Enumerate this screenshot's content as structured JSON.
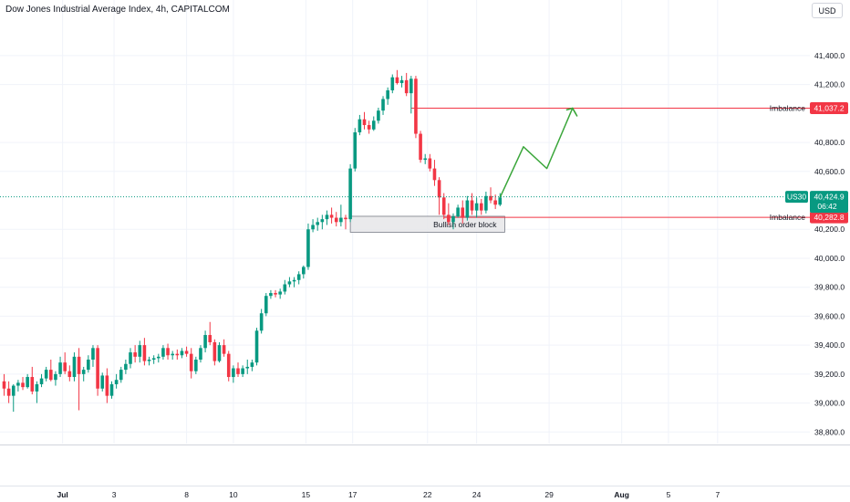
{
  "header": {
    "title": "Dow Jones Industrial Average Index, 4h, CAPITALCOM",
    "currency": "USD"
  },
  "colors": {
    "up": "#089981",
    "down": "#f23645",
    "projection": "#3aa63a",
    "level_line": "#f23645",
    "grid": "#f0f3fa",
    "axis_text": "#131722",
    "dotted_price": "#089981",
    "order_block_fill": "#e6e6e9",
    "order_block_border": "#787b86"
  },
  "chart_data": {
    "type": "candlestick",
    "symbol": "US30",
    "timeframe": "4h",
    "ylim": [
      38720,
      41620
    ],
    "y_ticks": [
      {
        "value": 38800,
        "label": "38,800.0"
      },
      {
        "value": 39000,
        "label": "39,000.0"
      },
      {
        "value": 39200,
        "label": "39,200.0"
      },
      {
        "value": 39400,
        "label": "39,400.0"
      },
      {
        "value": 39600,
        "label": "39,600.0"
      },
      {
        "value": 39800,
        "label": "39,800.0"
      },
      {
        "value": 40000,
        "label": "40,000.0"
      },
      {
        "value": 40200,
        "label": "40,200.0"
      },
      {
        "value": 40600,
        "label": "40,600.0"
      },
      {
        "value": 40800,
        "label": "40,800.0"
      },
      {
        "value": 41200,
        "label": "41,200.0"
      },
      {
        "value": 41400,
        "label": "41,400.0"
      }
    ],
    "x_ticks": [
      {
        "index": 12.5,
        "label": "Jul"
      },
      {
        "index": 23.5,
        "label": "3"
      },
      {
        "index": 39,
        "label": "8"
      },
      {
        "index": 49,
        "label": "10"
      },
      {
        "index": 64.5,
        "label": "15"
      },
      {
        "index": 74.5,
        "label": "17"
      },
      {
        "index": 90.5,
        "label": "22"
      },
      {
        "index": 101,
        "label": "24"
      },
      {
        "index": 116.5,
        "label": "29"
      },
      {
        "index": 132,
        "label": "Aug"
      },
      {
        "index": 142,
        "label": "5"
      },
      {
        "index": 152.5,
        "label": "7"
      }
    ],
    "candles": [
      [
        39150,
        39200,
        39050,
        39100
      ],
      [
        39100,
        39150,
        39000,
        39050
      ],
      [
        39050,
        39130,
        38940,
        39120
      ],
      [
        39120,
        39160,
        39080,
        39140
      ],
      [
        39140,
        39180,
        39090,
        39110
      ],
      [
        39110,
        39200,
        39100,
        39180
      ],
      [
        39180,
        39250,
        39060,
        39080
      ],
      [
        39080,
        39150,
        39000,
        39130
      ],
      [
        39130,
        39200,
        39110,
        39170
      ],
      [
        39170,
        39250,
        39150,
        39230
      ],
      [
        39230,
        39300,
        39150,
        39160
      ],
      [
        39160,
        39220,
        39120,
        39200
      ],
      [
        39200,
        39320,
        39180,
        39280
      ],
      [
        39280,
        39350,
        39200,
        39220
      ],
      [
        39220,
        39260,
        39150,
        39180
      ],
      [
        39180,
        39350,
        39150,
        39320
      ],
      [
        39320,
        39380,
        38950,
        39200
      ],
      [
        39200,
        39250,
        39150,
        39230
      ],
      [
        39230,
        39330,
        39210,
        39300
      ],
      [
        39300,
        39400,
        39250,
        39380
      ],
      [
        39380,
        39400,
        39050,
        39100
      ],
      [
        39100,
        39210,
        39080,
        39190
      ],
      [
        39190,
        39240,
        39000,
        39050
      ],
      [
        39050,
        39150,
        39030,
        39130
      ],
      [
        39130,
        39200,
        39100,
        39160
      ],
      [
        39160,
        39250,
        39140,
        39230
      ],
      [
        39230,
        39300,
        39200,
        39270
      ],
      [
        39270,
        39380,
        39240,
        39350
      ],
      [
        39350,
        39400,
        39280,
        39320
      ],
      [
        39320,
        39430,
        39280,
        39400
      ],
      [
        39400,
        39450,
        39260,
        39290
      ],
      [
        39290,
        39320,
        39260,
        39300
      ],
      [
        39300,
        39330,
        39270,
        39310
      ],
      [
        39310,
        39340,
        39280,
        39320
      ],
      [
        39320,
        39400,
        39300,
        39380
      ],
      [
        39380,
        39410,
        39300,
        39330
      ],
      [
        39330,
        39360,
        39300,
        39340
      ],
      [
        39340,
        39370,
        39300,
        39330
      ],
      [
        39330,
        39380,
        39310,
        39360
      ],
      [
        39360,
        39390,
        39320,
        39340
      ],
      [
        39340,
        39380,
        39170,
        39220
      ],
      [
        39220,
        39320,
        39200,
        39300
      ],
      [
        39300,
        39400,
        39280,
        39380
      ],
      [
        39380,
        39500,
        39350,
        39470
      ],
      [
        39470,
        39560,
        39400,
        39420
      ],
      [
        39420,
        39440,
        39260,
        39290
      ],
      [
        39290,
        39420,
        39280,
        39400
      ],
      [
        39400,
        39440,
        39320,
        39340
      ],
      [
        39340,
        39360,
        39150,
        39180
      ],
      [
        39180,
        39260,
        39140,
        39240
      ],
      [
        39240,
        39280,
        39180,
        39200
      ],
      [
        39200,
        39260,
        39180,
        39240
      ],
      [
        39240,
        39300,
        39200,
        39250
      ],
      [
        39250,
        39300,
        39220,
        39280
      ],
      [
        39280,
        39520,
        39260,
        39500
      ],
      [
        39500,
        39650,
        39480,
        39620
      ],
      [
        39620,
        39760,
        39600,
        39740
      ],
      [
        39740,
        39780,
        39720,
        39760
      ],
      [
        39760,
        39780,
        39730,
        39750
      ],
      [
        39750,
        39790,
        39720,
        39770
      ],
      [
        39770,
        39850,
        39750,
        39820
      ],
      [
        39820,
        39870,
        39800,
        39840
      ],
      [
        39840,
        39870,
        39800,
        39850
      ],
      [
        39850,
        39910,
        39820,
        39890
      ],
      [
        39890,
        39950,
        39860,
        39940
      ],
      [
        39940,
        40240,
        39920,
        40200
      ],
      [
        40200,
        40270,
        40180,
        40230
      ],
      [
        40230,
        40280,
        40190,
        40250
      ],
      [
        40250,
        40300,
        40200,
        40270
      ],
      [
        40270,
        40330,
        40230,
        40300
      ],
      [
        40300,
        40350,
        40240,
        40280
      ],
      [
        40280,
        40320,
        40220,
        40250
      ],
      [
        40250,
        40370,
        40220,
        40280
      ],
      [
        40280,
        40300,
        40200,
        40270
      ],
      [
        40270,
        40650,
        40250,
        40620
      ],
      [
        40620,
        40900,
        40600,
        40870
      ],
      [
        40870,
        40990,
        40850,
        40960
      ],
      [
        40960,
        41010,
        40890,
        40920
      ],
      [
        40920,
        40950,
        40860,
        40890
      ],
      [
        40890,
        40980,
        40880,
        40950
      ],
      [
        40950,
        41040,
        40930,
        41020
      ],
      [
        41020,
        41120,
        40990,
        41100
      ],
      [
        41100,
        41180,
        41060,
        41160
      ],
      [
        41160,
        41270,
        41140,
        41250
      ],
      [
        41250,
        41300,
        41200,
        41210
      ],
      [
        41210,
        41260,
        41180,
        41230
      ],
      [
        41230,
        41280,
        41120,
        41140
      ],
      [
        41140,
        41260,
        41000,
        41240
      ],
      [
        41240,
        41260,
        40830,
        40860
      ],
      [
        40860,
        40880,
        40660,
        40680
      ],
      [
        40680,
        40720,
        40650,
        40690
      ],
      [
        40690,
        40720,
        40600,
        40620
      ],
      [
        40620,
        40680,
        40500,
        40540
      ],
      [
        40540,
        40560,
        40300,
        40420
      ],
      [
        40420,
        40450,
        40270,
        40300
      ],
      [
        40300,
        40380,
        40230,
        40250
      ],
      [
        40250,
        40310,
        40200,
        40290
      ],
      [
        40290,
        40370,
        40280,
        40350
      ],
      [
        40350,
        40400,
        40240,
        40280
      ],
      [
        40280,
        40430,
        40260,
        40400
      ],
      [
        40400,
        40450,
        40300,
        40330
      ],
      [
        40330,
        40420,
        40280,
        40380
      ],
      [
        40380,
        40410,
        40300,
        40330
      ],
      [
        40330,
        40460,
        40310,
        40430
      ],
      [
        40430,
        40490,
        40380,
        40400
      ],
      [
        40400,
        40440,
        40340,
        40370
      ],
      [
        40370,
        40450,
        40360,
        40420
      ]
    ],
    "current_price": {
      "value": 40424.9,
      "label": "40,424.9",
      "symbol": "US30",
      "countdown": "06:42"
    },
    "levels": [
      {
        "value": 41037.2,
        "label": "41,037.2",
        "name": "Imbalance",
        "start_index": 87
      },
      {
        "value": 40282.8,
        "label": "40,282.8",
        "name": "Imbalance",
        "start_index": 94
      }
    ],
    "order_block": {
      "label": "Bullish order block",
      "from_index": 74,
      "to_index": 107,
      "high": 40290,
      "low": 40180
    },
    "projection_path": [
      [
        106,
        40420
      ],
      [
        111,
        40770
      ],
      [
        116,
        40620
      ],
      [
        121.5,
        41037
      ],
      [
        122.5,
        40980
      ]
    ]
  }
}
